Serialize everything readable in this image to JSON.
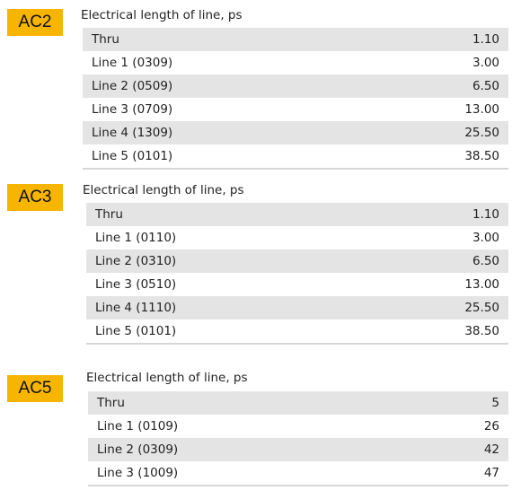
{
  "sections": [
    {
      "badge": "AC2",
      "heading": "Electrical length of line, ps",
      "rows": [
        {
          "label": "Thru",
          "value": "1.10"
        },
        {
          "label": "Line 1 (0309)",
          "value": "3.00"
        },
        {
          "label": "Line 2 (0509)",
          "value": "6.50"
        },
        {
          "label": "Line 3 (0709)",
          "value": "13.00"
        },
        {
          "label": "Line 4 (1309)",
          "value": "25.50"
        },
        {
          "label": "Line 5 (0101)",
          "value": "38.50"
        }
      ]
    },
    {
      "badge": "AC3",
      "heading": "Electrical length of line, ps",
      "rows": [
        {
          "label": "Thru",
          "value": "1.10"
        },
        {
          "label": "Line 1 (0110)",
          "value": "3.00"
        },
        {
          "label": "Line 2 (0310)",
          "value": "6.50"
        },
        {
          "label": "Line 3 (0510)",
          "value": "13.00"
        },
        {
          "label": "Line 4 (1110)",
          "value": "25.50"
        },
        {
          "label": "Line 5 (0101)",
          "value": "38.50"
        }
      ]
    },
    {
      "badge": "AC5",
      "heading": "Electrical length of line, ps",
      "rows": [
        {
          "label": "Thru",
          "value": "5"
        },
        {
          "label": "Line 1 (0109)",
          "value": "26"
        },
        {
          "label": "Line 2 (0309)",
          "value": "42"
        },
        {
          "label": "Line 3 (1009)",
          "value": "47"
        }
      ]
    }
  ]
}
